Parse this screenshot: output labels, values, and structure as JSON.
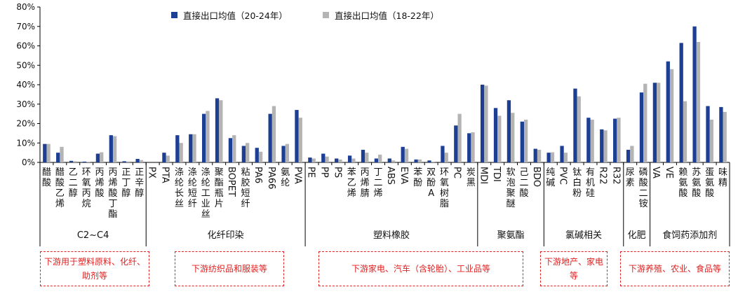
{
  "chart_data": {
    "type": "bar",
    "ylim": [
      0,
      80
    ],
    "yticks": [
      "0%",
      "10%",
      "20%",
      "30%",
      "40%",
      "50%",
      "60%",
      "70%",
      "80%"
    ],
    "legend_position": "top",
    "grid": false,
    "colors": {
      "series1": "#1c3f94",
      "series2": "#b4b4b4"
    },
    "series": [
      {
        "name": "直接出口均值（20-24年）"
      },
      {
        "name": "直接出口均值（18-22年）"
      }
    ],
    "categories": [
      "醋酸",
      "醋酸乙烯",
      "乙二醇",
      "环氧丙烷",
      "丙烯酸",
      "丙烯酸丁酯",
      "正丁醇",
      "正辛醇",
      "PX",
      "PTA",
      "涤纶长丝",
      "涤纶短纤",
      "涤纶工业丝",
      "聚酯瓶片",
      "BOPET",
      "粘胶短纤",
      "PA6",
      "PA66",
      "氨纶",
      "PVA",
      "PE",
      "PP",
      "PS",
      "苯乙烯",
      "丙烯腈",
      "丁二烯",
      "ABS",
      "EVA",
      "苯酚",
      "双酚A",
      "环氧树脂",
      "PC",
      "炭黑",
      "MDI",
      "TDI",
      "软泡聚醚",
      "己二酸",
      "BDO",
      "纯碱",
      "PVC",
      "钛白粉",
      "有机硅",
      "R22",
      "R32",
      "尿素",
      "磷酸二铵",
      "VA",
      "VE",
      "赖氨酸",
      "苏氨酸",
      "蛋氨酸",
      "味精"
    ],
    "values_2024": [
      9.5,
      5,
      0.8,
      0.4,
      4.5,
      14,
      0.6,
      1.8,
      0,
      5,
      14,
      14.5,
      25,
      33,
      12.5,
      8.5,
      7.5,
      25,
      8.5,
      27,
      2.5,
      4.5,
      2,
      3.5,
      6.5,
      2,
      2,
      8,
      1.5,
      1,
      8.5,
      19,
      15,
      40,
      28,
      32,
      21,
      7,
      5,
      8.5,
      38,
      23,
      17,
      22.5,
      6.5,
      36,
      41,
      52,
      61.5,
      70,
      29,
      28.5
    ],
    "values_2022": [
      9.5,
      8,
      0.6,
      0.3,
      5.2,
      13.5,
      0.5,
      1.2,
      0,
      3.5,
      10,
      14.5,
      26.5,
      32,
      14,
      10,
      5.5,
      29,
      9.5,
      23,
      2,
      3,
      1.5,
      2,
      5,
      4,
      1,
      7,
      1.5,
      0.4,
      5,
      25,
      15.5,
      39.5,
      24,
      25.5,
      22,
      6.5,
      5.2,
      5,
      34,
      22,
      16.5,
      23,
      8.5,
      40.5,
      41,
      48,
      31.5,
      62,
      22,
      26
    ],
    "groups": [
      {
        "label": "C2~C4",
        "count": 8,
        "note": "下游用于塑料原料、化纤、助剂等"
      },
      {
        "label": "化纤印染",
        "count": 12,
        "note": "下游纺织品和服装等"
      },
      {
        "label": "塑料橡胶",
        "count": 13,
        "note": "下游家电、汽车（含轮胎）、工业品等"
      },
      {
        "label": "聚氨酯",
        "count": 5,
        "note": ""
      },
      {
        "label": "氯碱相关",
        "count": 6,
        "note": "下游地产、家电等"
      },
      {
        "label": "化肥",
        "count": 2,
        "note": ""
      },
      {
        "label": "食饲药添加剂",
        "count": 6,
        "note": "下游养殖、农业、食品等"
      }
    ]
  }
}
